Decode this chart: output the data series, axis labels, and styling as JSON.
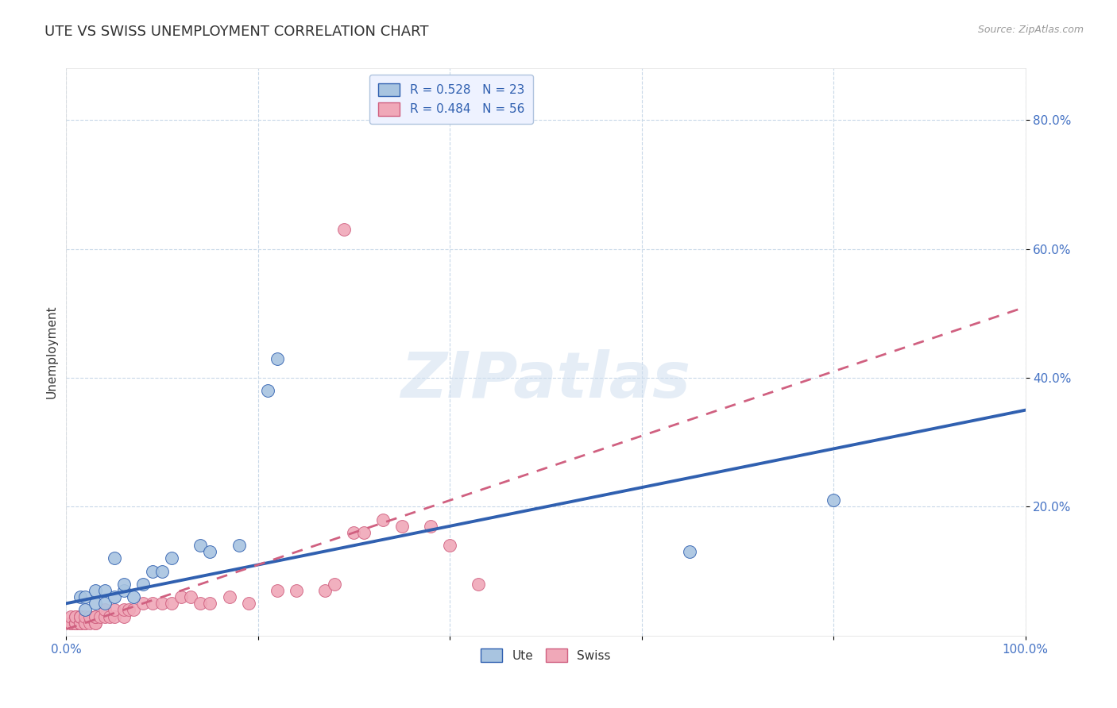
{
  "title": "UTE VS SWISS UNEMPLOYMENT CORRELATION CHART",
  "source_text": "Source: ZipAtlas.com",
  "ylabel": "Unemployment",
  "xlim": [
    0.0,
    1.0
  ],
  "ylim": [
    0.0,
    0.88
  ],
  "xticks": [
    0.0,
    0.2,
    0.4,
    0.6,
    0.8,
    1.0
  ],
  "yticks": [
    0.2,
    0.4,
    0.6,
    0.8
  ],
  "xticklabels_left": "0.0%",
  "xticklabels_right": "100.0%",
  "yticklabels": [
    "20.0%",
    "40.0%",
    "60.0%",
    "80.0%"
  ],
  "ute_R": 0.528,
  "ute_N": 23,
  "swiss_R": 0.484,
  "swiss_N": 56,
  "ute_color": "#a8c4e0",
  "swiss_color": "#f0a8b8",
  "ute_line_color": "#3060b0",
  "swiss_line_color": "#d06080",
  "background_color": "#ffffff",
  "grid_color": "#c8d8e8",
  "watermark_text": "ZIPatlas",
  "title_fontsize": 13,
  "label_fontsize": 11,
  "tick_fontsize": 11,
  "ute_scatter_x": [
    0.015,
    0.02,
    0.02,
    0.03,
    0.03,
    0.04,
    0.04,
    0.05,
    0.05,
    0.06,
    0.06,
    0.07,
    0.08,
    0.09,
    0.1,
    0.11,
    0.14,
    0.15,
    0.18,
    0.21,
    0.22,
    0.65,
    0.8
  ],
  "ute_scatter_y": [
    0.06,
    0.04,
    0.06,
    0.05,
    0.07,
    0.05,
    0.07,
    0.06,
    0.12,
    0.07,
    0.08,
    0.06,
    0.08,
    0.1,
    0.1,
    0.12,
    0.14,
    0.13,
    0.14,
    0.38,
    0.43,
    0.13,
    0.21
  ],
  "swiss_scatter_x": [
    0.005,
    0.005,
    0.005,
    0.01,
    0.01,
    0.01,
    0.01,
    0.01,
    0.01,
    0.015,
    0.015,
    0.015,
    0.015,
    0.015,
    0.015,
    0.02,
    0.02,
    0.02,
    0.025,
    0.025,
    0.03,
    0.03,
    0.03,
    0.03,
    0.035,
    0.04,
    0.04,
    0.045,
    0.05,
    0.05,
    0.06,
    0.06,
    0.065,
    0.07,
    0.08,
    0.09,
    0.1,
    0.11,
    0.12,
    0.13,
    0.14,
    0.15,
    0.17,
    0.19,
    0.22,
    0.24,
    0.27,
    0.28,
    0.29,
    0.3,
    0.31,
    0.33,
    0.35,
    0.38,
    0.4,
    0.43
  ],
  "swiss_scatter_y": [
    0.02,
    0.02,
    0.03,
    0.02,
    0.02,
    0.02,
    0.02,
    0.03,
    0.03,
    0.02,
    0.02,
    0.02,
    0.03,
    0.03,
    0.03,
    0.02,
    0.02,
    0.03,
    0.02,
    0.03,
    0.02,
    0.02,
    0.03,
    0.03,
    0.03,
    0.03,
    0.04,
    0.03,
    0.03,
    0.04,
    0.03,
    0.04,
    0.04,
    0.04,
    0.05,
    0.05,
    0.05,
    0.05,
    0.06,
    0.06,
    0.05,
    0.05,
    0.06,
    0.05,
    0.07,
    0.07,
    0.07,
    0.08,
    0.63,
    0.16,
    0.16,
    0.18,
    0.17,
    0.17,
    0.14,
    0.08
  ],
  "legend_box_color": "#eef2ff",
  "legend_border_color": "#b0c4de",
  "ute_line_intercept": 0.05,
  "ute_line_slope": 0.3,
  "swiss_line_intercept": 0.01,
  "swiss_line_slope": 0.5
}
